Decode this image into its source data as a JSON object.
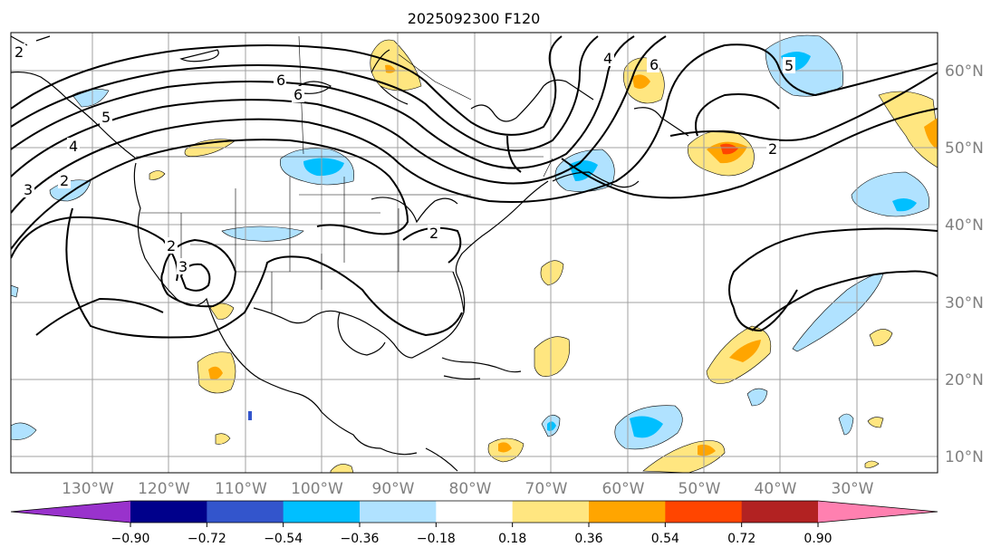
{
  "title": "2025092300 F120",
  "lat_labels": [
    "60°N",
    "50°N",
    "40°N",
    "30°N",
    "20°N",
    "10°N"
  ],
  "lon_labels": [
    "130°W",
    "120°W",
    "110°W",
    "100°W",
    "90°W",
    "80°W",
    "70°W",
    "60°W",
    "50°W",
    "40°W",
    "30°W"
  ],
  "contour_labels": [
    "6",
    "6",
    "5",
    "4",
    "3",
    "2",
    "2",
    "3",
    "2",
    "2",
    "4",
    "6",
    "5",
    "2"
  ],
  "colorbar": {
    "ticks": [
      "−0.90",
      "−0.72",
      "−0.54",
      "−0.36",
      "−0.18",
      "0.18",
      "0.36",
      "0.54",
      "0.72",
      "0.90"
    ],
    "colors": [
      "#9932cc",
      "#00008b",
      "#3355cc",
      "#00bfff",
      "#b0e2ff",
      "#ffffff",
      "#ffe680",
      "#ffa500",
      "#ff4500",
      "#b22222",
      "#ff80b0"
    ]
  },
  "shading": {
    "neg_light": "#b0e2ff",
    "neg_mid": "#00bfff",
    "pos_light": "#ffe680",
    "pos_mid": "#ffa500",
    "pos_high": "#ff4500"
  }
}
